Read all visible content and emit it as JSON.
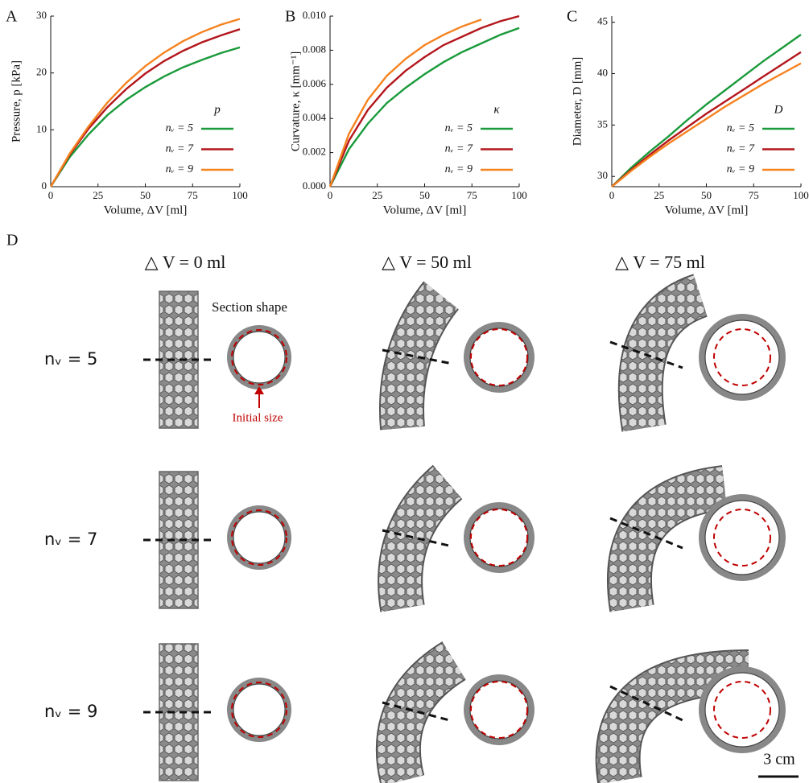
{
  "chart_data": [
    {
      "type": "line",
      "panel_label": "A",
      "x_label": "Volume, ΔV [ml]",
      "y_label": "Pressure, p [kPa]",
      "legend_title": "p",
      "x": [
        0,
        10,
        20,
        30,
        40,
        50,
        60,
        70,
        80,
        90,
        100
      ],
      "xlim": [
        0,
        100
      ],
      "xticks": [
        0,
        25,
        50,
        75,
        100
      ],
      "ylim": [
        0,
        30
      ],
      "yticks": [
        0,
        10,
        20,
        30
      ],
      "legend": "lower right",
      "series": [
        {
          "name": "nᵥ = 5",
          "color": "#1a9a3a",
          "values": [
            0,
            5.2,
            9.2,
            12.6,
            15.3,
            17.5,
            19.4,
            21,
            22.3,
            23.5,
            24.5
          ]
        },
        {
          "name": "nᵥ = 7",
          "color": "#b3161c",
          "values": [
            0,
            5.6,
            10.2,
            14,
            17.2,
            19.9,
            22.1,
            23.9,
            25.4,
            26.6,
            27.7
          ]
        },
        {
          "name": "nᵥ = 9",
          "color": "#f5821f",
          "values": [
            0,
            5.8,
            10.6,
            14.8,
            18.3,
            21.2,
            23.6,
            25.6,
            27.2,
            28.5,
            29.5
          ]
        }
      ]
    },
    {
      "type": "line",
      "panel_label": "B",
      "x_label": "Volume, ΔV [ml]",
      "y_label": "Curvature, κ [mm⁻¹]",
      "legend_title": "κ",
      "x": [
        0,
        10,
        20,
        30,
        40,
        50,
        60,
        70,
        80,
        90,
        100
      ],
      "xlim": [
        0,
        100
      ],
      "xticks": [
        0,
        25,
        50,
        75,
        100
      ],
      "ylim": [
        0,
        0.01
      ],
      "yticks": [
        {
          "value": 0,
          "label": "0.000"
        },
        {
          "value": 0.002,
          "label": "0.002"
        },
        {
          "value": 0.004,
          "label": "0.004"
        },
        {
          "value": 0.006,
          "label": "0.006"
        },
        {
          "value": 0.008,
          "label": "0.008"
        },
        {
          "value": 0.01,
          "label": "0.010"
        }
      ],
      "legend": "lower right",
      "series": [
        {
          "name": "nᵥ = 5",
          "color": "#1a9a3a",
          "values": [
            0,
            0.0022,
            0.0037,
            0.0049,
            0.0058,
            0.0066,
            0.0073,
            0.0079,
            0.0084,
            0.0089,
            0.0093
          ]
        },
        {
          "name": "nᵥ = 7",
          "color": "#b3161c",
          "values": [
            0,
            0.0027,
            0.0045,
            0.0058,
            0.0068,
            0.0076,
            0.0083,
            0.0088,
            0.0093,
            0.0097,
            0.01
          ]
        },
        {
          "name": "nᵥ = 9",
          "color": "#f5821f",
          "values": [
            0,
            0.0031,
            0.0051,
            0.0065,
            0.0075,
            0.0083,
            0.0089,
            0.0094,
            0.0098,
            null,
            null
          ]
        }
      ]
    },
    {
      "type": "line",
      "panel_label": "C",
      "x_label": "Volume, ΔV [ml]",
      "y_label": "Diameter, D [mm]",
      "legend_title": "D",
      "x": [
        0,
        10,
        20,
        30,
        40,
        50,
        60,
        70,
        80,
        90,
        100
      ],
      "xlim": [
        0,
        100
      ],
      "xticks": [
        0,
        25,
        50,
        75,
        100
      ],
      "ylim": [
        29,
        45.6
      ],
      "yticks": [
        30,
        35,
        40,
        45
      ],
      "legend": "lower right",
      "series": [
        {
          "name": "nᵥ = 5",
          "color": "#1a9a3a",
          "values": [
            29,
            30.8,
            32.4,
            33.9,
            35.5,
            37,
            38.4,
            39.8,
            41.2,
            42.5,
            43.8
          ]
        },
        {
          "name": "nᵥ = 7",
          "color": "#b3161c",
          "values": [
            29,
            30.6,
            32.1,
            33.5,
            34.8,
            36.1,
            37.3,
            38.5,
            39.7,
            40.9,
            42.1
          ]
        },
        {
          "name": "nᵥ = 9",
          "color": "#f5821f",
          "values": [
            29,
            30.5,
            31.9,
            33.2,
            34.4,
            35.6,
            36.8,
            37.9,
            39,
            40,
            41
          ]
        }
      ]
    }
  ],
  "panel_d": {
    "label": "D",
    "columns": [
      "△ V = 0 ml",
      "△ V = 50 ml",
      "△ V = 75 ml"
    ],
    "rows": [
      "nᵥ = 5",
      "nᵥ = 7",
      "nᵥ = 9"
    ],
    "section_label": "Section shape",
    "initial_label": "Initial size",
    "scale_bar": "3 cm"
  }
}
